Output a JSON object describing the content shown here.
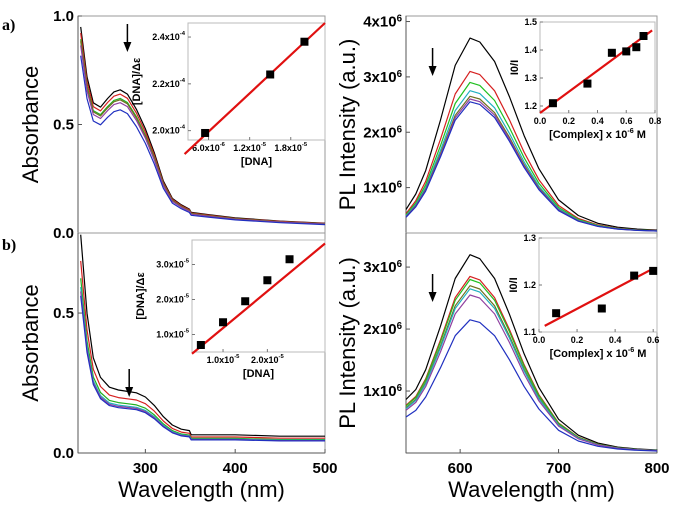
{
  "panel_labels": [
    "a)",
    "b)"
  ],
  "chart_data": [
    {
      "id": "a-abs",
      "type": "line",
      "panel": "a)",
      "xlabel": "",
      "ylabel": "Absorbance",
      "xlim": [
        225,
        500
      ],
      "ylim": [
        0,
        1.0
      ],
      "xticks": [],
      "yticks": [
        {
          "v": 0.0,
          "t": "0.0"
        },
        {
          "v": 0.5,
          "t": "0.5"
        },
        {
          "v": 1.0,
          "t": "1.0"
        }
      ],
      "x": [
        228,
        235,
        242,
        250,
        258,
        265,
        272,
        280,
        290,
        300,
        310,
        320,
        330,
        340,
        349,
        351,
        370,
        400,
        450,
        500
      ],
      "profile": [
        0.95,
        0.72,
        0.6,
        0.58,
        0.62,
        0.65,
        0.66,
        0.64,
        0.57,
        0.48,
        0.37,
        0.24,
        0.16,
        0.13,
        0.11,
        0.095,
        0.085,
        0.07,
        0.055,
        0.045
      ],
      "series": [
        {
          "name": "s1",
          "color": "#000000",
          "scale": 1.0
        },
        {
          "name": "s2",
          "color": "#d62020",
          "scale": 0.97
        },
        {
          "name": "s3",
          "color": "#20b020",
          "scale": 0.94
        },
        {
          "name": "s4",
          "color": "#707020",
          "scale": 0.93
        },
        {
          "name": "s5",
          "color": "#9040a0",
          "scale": 0.91
        },
        {
          "name": "s6",
          "color": "#2030c0",
          "scale": 0.86
        }
      ],
      "arrow_x": 280,
      "inset": {
        "type": "scatter",
        "xlabel": "[DNA]",
        "ylabel": "[DNA]/Δε",
        "xlim": [
          3e-06,
          2.3e-05
        ],
        "ylim": [
          0.000196,
          0.000246
        ],
        "xticks": [
          {
            "v": 6e-06,
            "t": "6.0x10",
            "e": "-6"
          },
          {
            "v": 1.2e-05,
            "t": "1.2x10",
            "e": "-5"
          },
          {
            "v": 1.8e-05,
            "t": "1.8x10",
            "e": "-5"
          }
        ],
        "yticks": [
          {
            "v": 0.0002,
            "t": "2.0x10",
            "e": "-4"
          },
          {
            "v": 0.00022,
            "t": "2.2x10",
            "e": "-4"
          },
          {
            "v": 0.00024,
            "t": "2.4x10",
            "e": "-4"
          }
        ],
        "x": [
          5.5e-06,
          1.5e-05,
          2e-05
        ],
        "y": [
          0.000199,
          0.000224,
          0.000238
        ],
        "fit": [
          [
            2.5e-06,
            0.00019
          ],
          [
            2.3e-05,
            0.000246
          ]
        ]
      }
    },
    {
      "id": "a-pl",
      "type": "line",
      "panel": "a)",
      "xlabel": "",
      "ylabel": "PL Intensity (a.u.)",
      "xlim": [
        545,
        800
      ],
      "ylim": [
        180000.0,
        4100000.0
      ],
      "xticks": [],
      "yticks": [
        {
          "v": 1000000.0,
          "t": "1x10",
          "e": "6"
        },
        {
          "v": 2000000.0,
          "t": "2x10",
          "e": "6"
        },
        {
          "v": 3000000.0,
          "t": "3x10",
          "e": "6"
        },
        {
          "v": 4000000.0,
          "t": "4x10",
          "e": "6"
        }
      ],
      "x": [
        545,
        555,
        565,
        580,
        595,
        610,
        620,
        635,
        650,
        665,
        680,
        700,
        720,
        740,
        760,
        780,
        800
      ],
      "profile": [
        0.12,
        0.2,
        0.32,
        0.58,
        0.86,
        1.0,
        0.98,
        0.88,
        0.7,
        0.5,
        0.33,
        0.17,
        0.09,
        0.05,
        0.03,
        0.02,
        0.015
      ],
      "series": [
        {
          "name": "s1",
          "color": "#000000",
          "peak": 3700000.0
        },
        {
          "name": "s2",
          "color": "#d62020",
          "peak": 3100000.0
        },
        {
          "name": "s3",
          "color": "#20c020",
          "peak": 2900000.0
        },
        {
          "name": "s4",
          "color": "#20b0c0",
          "peak": 2750000.0
        },
        {
          "name": "s5",
          "color": "#707020",
          "peak": 2650000.0
        },
        {
          "name": "s6",
          "color": "#9040a0",
          "peak": 2600000.0
        },
        {
          "name": "s7",
          "color": "#2030c0",
          "peak": 2550000.0
        }
      ],
      "arrow_x": 572,
      "inset": {
        "type": "scatter",
        "xlabel": "[Complex] x 10",
        "xlabel_exp": "-6",
        "xlabel_unit": " M",
        "ylabel": "I0/I",
        "xlim": [
          0,
          0.8
        ],
        "ylim": [
          1.175,
          1.5
        ],
        "xticks": [
          {
            "v": 0,
            "t": "0.0"
          },
          {
            "v": 0.2,
            "t": "0.2"
          },
          {
            "v": 0.4,
            "t": "0.4"
          },
          {
            "v": 0.6,
            "t": "0.6"
          },
          {
            "v": 0.8,
            "t": "0.8"
          }
        ],
        "yticks": [
          {
            "v": 1.2,
            "t": "1.2"
          },
          {
            "v": 1.3,
            "t": "1.3"
          },
          {
            "v": 1.4,
            "t": "1.4"
          },
          {
            "v": 1.5,
            "t": "1.5"
          }
        ],
        "x": [
          0.09,
          0.33,
          0.5,
          0.6,
          0.67,
          0.72
        ],
        "y": [
          1.21,
          1.28,
          1.39,
          1.395,
          1.41,
          1.45
        ],
        "fit": [
          [
            0,
            1.175
          ],
          [
            0.78,
            1.47
          ]
        ]
      }
    },
    {
      "id": "b-abs",
      "type": "line",
      "panel": "b)",
      "xlabel": "Wavelength (nm)",
      "ylabel": "Absorbance",
      "xlim": [
        225,
        500
      ],
      "ylim": [
        0,
        0.786
      ],
      "xticks": [
        {
          "v": 300,
          "t": "300"
        },
        {
          "v": 400,
          "t": "400"
        },
        {
          "v": 500,
          "t": "500"
        }
      ],
      "yticks": [
        {
          "v": 0.0,
          "t": "0.0"
        },
        {
          "v": 0.5,
          "t": "0.5"
        }
      ],
      "x": [
        228,
        235,
        242,
        250,
        260,
        270,
        280,
        290,
        300,
        310,
        320,
        330,
        340,
        349,
        351,
        370,
        400,
        450,
        500
      ],
      "profile": [
        0.78,
        0.5,
        0.34,
        0.27,
        0.235,
        0.225,
        0.22,
        0.215,
        0.2,
        0.17,
        0.13,
        0.1,
        0.085,
        0.08,
        0.065,
        0.065,
        0.065,
        0.06,
        0.06
      ],
      "series": [
        {
          "name": "s1",
          "color": "#000000",
          "scale": 1.0
        },
        {
          "name": "s2",
          "color": "#d62020",
          "scale": 0.88
        },
        {
          "name": "s3",
          "color": "#20b020",
          "scale": 0.8
        },
        {
          "name": "s4",
          "color": "#20b0c0",
          "scale": 0.76
        },
        {
          "name": "s5",
          "color": "#9040a0",
          "scale": 0.74
        },
        {
          "name": "s6",
          "color": "#2030c0",
          "scale": 0.72
        }
      ],
      "arrow_x": 282,
      "inset": {
        "type": "scatter",
        "xlabel": "[DNA]",
        "ylabel": "[DNA]/Δε",
        "xlim": [
          3e-06,
          3.3e-05
        ],
        "ylim": [
          5e-06,
          3.7e-05
        ],
        "xticks": [
          {
            "v": 1e-05,
            "t": "1.0x10",
            "e": "-5"
          },
          {
            "v": 2e-05,
            "t": "2.0x10",
            "e": "-5"
          }
        ],
        "yticks": [
          {
            "v": 1e-05,
            "t": "1.0x10",
            "e": "-5"
          },
          {
            "v": 2e-05,
            "t": "2.0x10",
            "e": "-5"
          },
          {
            "v": 3e-05,
            "t": "3.0x10",
            "e": "-5"
          }
        ],
        "x": [
          5e-06,
          1e-05,
          1.5e-05,
          2e-05,
          2.5e-05
        ],
        "y": [
          7e-06,
          1.35e-05,
          1.95e-05,
          2.55e-05,
          3.15e-05
        ],
        "fit": [
          [
            3e-06,
            4.5e-06
          ],
          [
            3.3e-05,
            3.6e-05
          ]
        ]
      }
    },
    {
      "id": "b-pl",
      "type": "line",
      "panel": "b)",
      "xlabel": "Wavelength (nm)",
      "ylabel": "PL Intensity (a.u.)",
      "xlim": [
        545,
        800
      ],
      "ylim": [
        0,
        3550000.0
      ],
      "xticks": [
        {
          "v": 600,
          "t": "600"
        },
        {
          "v": 700,
          "t": "700"
        },
        {
          "v": 800,
          "t": "800"
        }
      ],
      "yticks": [
        {
          "v": 1000000.0,
          "t": "1x10",
          "e": "6"
        },
        {
          "v": 2000000.0,
          "t": "2x10",
          "e": "6"
        },
        {
          "v": 3000000.0,
          "t": "3x10",
          "e": "6"
        }
      ],
      "x": [
        545,
        555,
        565,
        580,
        595,
        610,
        620,
        635,
        650,
        665,
        680,
        700,
        720,
        740,
        760,
        780,
        800
      ],
      "profile": [
        0.27,
        0.32,
        0.42,
        0.64,
        0.88,
        1.0,
        0.98,
        0.88,
        0.7,
        0.5,
        0.33,
        0.17,
        0.09,
        0.05,
        0.03,
        0.02,
        0.015
      ],
      "series": [
        {
          "name": "s1",
          "color": "#000000",
          "peak": 3200000.0
        },
        {
          "name": "s2",
          "color": "#d62020",
          "peak": 2850000.0
        },
        {
          "name": "s3",
          "color": "#20c020",
          "peak": 2800000.0
        },
        {
          "name": "s4",
          "color": "#707020",
          "peak": 2700000.0
        },
        {
          "name": "s5",
          "color": "#20b0c0",
          "peak": 2650000.0
        },
        {
          "name": "s6",
          "color": "#9040a0",
          "peak": 2550000.0
        },
        {
          "name": "s7",
          "color": "#2030c0",
          "peak": 2150000.0
        }
      ],
      "arrow_x": 572,
      "inset": {
        "type": "scatter",
        "xlabel": "[Complex] x 10",
        "xlabel_exp": "-6",
        "xlabel_unit": " M",
        "ylabel": "I0/I",
        "xlim": [
          0,
          0.62
        ],
        "ylim": [
          1.1,
          1.3
        ],
        "xticks": [
          {
            "v": 0,
            "t": "0.0"
          },
          {
            "v": 0.2,
            "t": "0.2"
          },
          {
            "v": 0.4,
            "t": "0.4"
          },
          {
            "v": 0.6,
            "t": "0.6"
          }
        ],
        "yticks": [
          {
            "v": 1.1,
            "t": "1.1"
          },
          {
            "v": 1.2,
            "t": "1.2"
          },
          {
            "v": 1.3,
            "t": "1.3"
          }
        ],
        "x": [
          0.09,
          0.33,
          0.5,
          0.6
        ],
        "y": [
          1.14,
          1.15,
          1.22,
          1.23
        ],
        "fit": [
          [
            0.03,
            1.113
          ],
          [
            0.6,
            1.235
          ]
        ]
      }
    }
  ]
}
